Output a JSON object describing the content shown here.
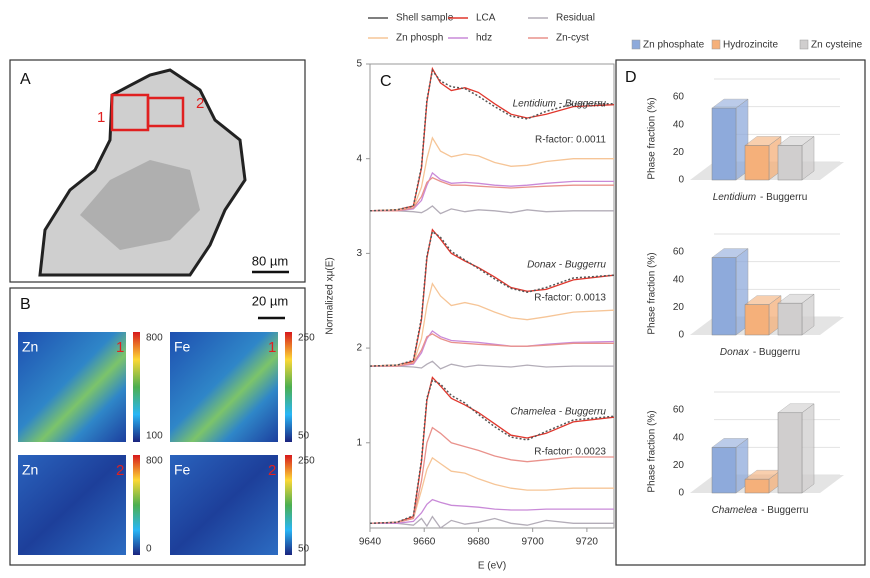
{
  "chart_data": [
    {
      "type": "line",
      "panel_label": "C",
      "xlabel": "E (eV)",
      "ylabel": "Normalized xμ(E)",
      "x": [
        9640,
        9650,
        9656,
        9659,
        9661,
        9663,
        9666,
        9670,
        9675,
        9680,
        9686,
        9692,
        9698,
        9705,
        9715,
        9730
      ],
      "xlim": [
        9640,
        9730
      ],
      "xticks": [
        9640,
        9660,
        9680,
        9700,
        9720
      ],
      "ylim": [
        0.1,
        5
      ],
      "yticks": [
        1,
        2,
        3,
        4,
        5
      ],
      "annotations": [
        {
          "sample": "Lentidium - Buggerru",
          "r_factor": "R-factor: 0.0011"
        },
        {
          "sample": "Donax - Buggerru",
          "r_factor": "R-factor: 0.0013"
        },
        {
          "sample": "Chamelea - Buggerru",
          "r_factor": "R-factor: 0.0023"
        }
      ],
      "series": [
        {
          "name": "Shell sample",
          "color": "#555555",
          "style": "dotted",
          "values": [
            3.45,
            3.46,
            3.5,
            3.92,
            4.62,
            4.93,
            4.82,
            4.76,
            4.74,
            4.66,
            4.55,
            4.45,
            4.42,
            4.5,
            4.58,
            4.58
          ]
        },
        {
          "name": "LCA",
          "color": "#e0362c",
          "values": [
            3.45,
            3.46,
            3.5,
            3.9,
            4.6,
            4.95,
            4.8,
            4.72,
            4.75,
            4.7,
            4.58,
            4.47,
            4.43,
            4.47,
            4.55,
            4.57
          ]
        },
        {
          "name": "Residual",
          "color": "#b3adb8",
          "values": [
            3.45,
            3.45,
            3.44,
            3.43,
            3.46,
            3.5,
            3.42,
            3.47,
            3.44,
            3.46,
            3.45,
            3.43,
            3.46,
            3.44,
            3.45,
            3.45
          ]
        },
        {
          "name": "Zn phosph",
          "color": "#f6c597",
          "values": [
            3.45,
            3.46,
            3.48,
            3.7,
            4.0,
            4.22,
            4.08,
            4.02,
            4.05,
            4.03,
            3.96,
            3.92,
            3.93,
            3.97,
            4.0,
            4.0
          ]
        },
        {
          "name": "hdz",
          "color": "#c98ad8",
          "values": [
            3.45,
            3.45,
            3.47,
            3.56,
            3.72,
            3.85,
            3.78,
            3.74,
            3.75,
            3.74,
            3.72,
            3.71,
            3.72,
            3.74,
            3.76,
            3.76
          ]
        },
        {
          "name": "Zn-cyst",
          "color": "#e9928c",
          "values": [
            3.45,
            3.45,
            3.48,
            3.6,
            3.75,
            3.8,
            3.76,
            3.72,
            3.72,
            3.71,
            3.7,
            3.69,
            3.7,
            3.71,
            3.72,
            3.72
          ]
        },
        {
          "name": "Shell sample",
          "color": "#555555",
          "style": "dotted",
          "values": [
            1.81,
            1.82,
            1.87,
            2.32,
            2.97,
            3.23,
            3.17,
            3.02,
            2.93,
            2.84,
            2.73,
            2.63,
            2.59,
            2.64,
            2.74,
            2.77
          ]
        },
        {
          "name": "LCA",
          "color": "#e0362c",
          "values": [
            1.81,
            1.82,
            1.86,
            2.3,
            2.95,
            3.25,
            3.15,
            3.0,
            2.92,
            2.85,
            2.75,
            2.64,
            2.6,
            2.62,
            2.72,
            2.77
          ]
        },
        {
          "name": "Residual",
          "color": "#b3adb8",
          "values": [
            1.81,
            1.81,
            1.8,
            1.79,
            1.83,
            1.86,
            1.78,
            1.83,
            1.8,
            1.82,
            1.81,
            1.8,
            1.82,
            1.8,
            1.81,
            1.81
          ]
        },
        {
          "name": "Zn phosph",
          "color": "#f6c597",
          "values": [
            1.81,
            1.82,
            1.84,
            2.1,
            2.45,
            2.68,
            2.55,
            2.45,
            2.48,
            2.45,
            2.38,
            2.32,
            2.3,
            2.33,
            2.38,
            2.4
          ]
        },
        {
          "name": "hdz",
          "color": "#c98ad8",
          "values": [
            1.81,
            1.81,
            1.83,
            1.95,
            2.1,
            2.18,
            2.12,
            2.08,
            2.07,
            2.06,
            2.04,
            2.02,
            2.02,
            2.04,
            2.06,
            2.07
          ]
        },
        {
          "name": "Zn-cyst",
          "color": "#e9928c",
          "values": [
            1.81,
            1.81,
            1.84,
            1.98,
            2.12,
            2.15,
            2.1,
            2.06,
            2.05,
            2.04,
            2.03,
            2.02,
            2.02,
            2.03,
            2.05,
            2.05
          ]
        },
        {
          "name": "Shell sample",
          "color": "#555555",
          "style": "dotted",
          "values": [
            0.15,
            0.16,
            0.23,
            0.82,
            1.47,
            1.66,
            1.62,
            1.5,
            1.42,
            1.3,
            1.17,
            1.06,
            1.03,
            1.12,
            1.24,
            1.28
          ]
        },
        {
          "name": "LCA",
          "color": "#e0362c",
          "values": [
            0.15,
            0.16,
            0.22,
            0.8,
            1.45,
            1.69,
            1.6,
            1.47,
            1.4,
            1.32,
            1.2,
            1.08,
            1.05,
            1.1,
            1.22,
            1.27
          ]
        },
        {
          "name": "Residual",
          "color": "#b3adb8",
          "values": [
            0.15,
            0.15,
            0.13,
            0.2,
            0.12,
            0.22,
            0.1,
            0.18,
            0.14,
            0.16,
            0.2,
            0.15,
            0.13,
            0.18,
            0.15,
            0.15
          ]
        },
        {
          "name": "Zn phosph",
          "color": "#f6c597",
          "values": [
            0.15,
            0.16,
            0.2,
            0.5,
            0.72,
            0.84,
            0.78,
            0.7,
            0.68,
            0.62,
            0.56,
            0.52,
            0.5,
            0.5,
            0.52,
            0.52
          ]
        },
        {
          "name": "hdz",
          "color": "#c98ad8",
          "values": [
            0.15,
            0.15,
            0.17,
            0.26,
            0.35,
            0.4,
            0.37,
            0.34,
            0.33,
            0.32,
            0.3,
            0.29,
            0.29,
            0.3,
            0.3,
            0.3
          ]
        },
        {
          "name": "Zn-cyst",
          "color": "#e9928c",
          "values": [
            0.15,
            0.16,
            0.2,
            0.6,
            1.0,
            1.16,
            1.1,
            1.0,
            0.96,
            0.92,
            0.86,
            0.82,
            0.8,
            0.82,
            0.85,
            0.85
          ]
        }
      ]
    },
    {
      "type": "bar",
      "panel_label": "D",
      "ylabel": "Phase fraction (%)",
      "categories": [
        "Zn phosphate",
        "Hydrozincite",
        "Zn cysteine"
      ],
      "colors": [
        "#8eaadb",
        "#f5b07a",
        "#d0cece"
      ],
      "ylim": [
        0,
        60
      ],
      "yticks": [
        0,
        20,
        40,
        60
      ],
      "grid": true,
      "panels": [
        {
          "title": [
            "Lentidium",
            "- Buggerru"
          ],
          "values": [
            52,
            25,
            25
          ]
        },
        {
          "title": [
            "Donax",
            "- Buggerru"
          ],
          "values": [
            56,
            22,
            23
          ]
        },
        {
          "title": [
            "Chamelea",
            "- Buggerru"
          ],
          "values": [
            33,
            10,
            58
          ]
        }
      ]
    }
  ],
  "image_panels": {
    "A": {
      "label": "A",
      "regions": [
        "1",
        "2"
      ],
      "scale": "80 µm"
    },
    "B": {
      "label": "B",
      "scale": "20 µm",
      "maps": [
        {
          "element": "Zn",
          "region": "1",
          "max": 800,
          "min": 100
        },
        {
          "element": "Fe",
          "region": "1",
          "max": 250,
          "min": 50
        },
        {
          "element": "Zn",
          "region": "2",
          "max": 800,
          "min": 0
        },
        {
          "element": "Fe",
          "region": "2",
          "max": 250,
          "min": 50
        }
      ]
    }
  }
}
